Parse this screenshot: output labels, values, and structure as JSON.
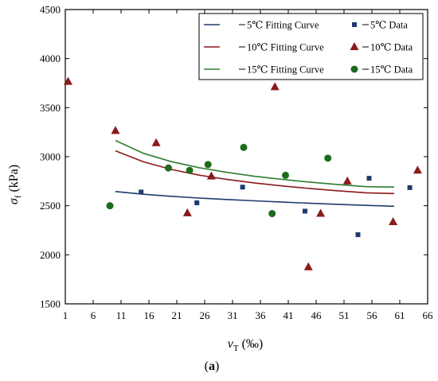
{
  "chart_data": {
    "type": "scatter",
    "xlabel": {
      "main": "v",
      "sub": "T",
      "unit": " (‰)"
    },
    "ylabel": {
      "main": "σ",
      "sub": "f",
      "unit": " (kPa)"
    },
    "caption": {
      "open": "(",
      "letter": "a",
      "close": ")"
    },
    "xlim": [
      1,
      66
    ],
    "ylim": [
      1500,
      4500
    ],
    "xticks": [
      1,
      6,
      11,
      16,
      21,
      26,
      31,
      36,
      41,
      46,
      51,
      56,
      61,
      66
    ],
    "yticks": [
      1500,
      2000,
      2500,
      3000,
      3500,
      4000,
      4500
    ],
    "grid": false,
    "legend_position": "top-right",
    "fitting_curves": [
      {
        "name": "5℃  Fitting Curve",
        "color": "#1f3a6e",
        "x": [
          10,
          15,
          20,
          25,
          30,
          35,
          40,
          45,
          50,
          55,
          60
        ],
        "y": [
          2645,
          2617,
          2596,
          2578,
          2564,
          2550,
          2537,
          2525,
          2514,
          2504,
          2495
        ]
      },
      {
        "name": "10℃  Fitting Curve",
        "color": "#8b1a1a",
        "x": [
          10,
          15,
          20,
          25,
          30,
          35,
          40,
          45,
          50,
          55,
          60
        ],
        "y": [
          3060,
          2948,
          2870,
          2812,
          2768,
          2732,
          2702,
          2675,
          2652,
          2632,
          2625
        ]
      },
      {
        "name": "15℃  Fitting Curve",
        "color": "#2e7d32",
        "x": [
          10,
          15,
          20,
          25,
          30,
          35,
          40,
          45,
          50,
          55,
          60
        ],
        "y": [
          3165,
          3035,
          2950,
          2888,
          2840,
          2800,
          2768,
          2740,
          2715,
          2694,
          2690
        ]
      }
    ],
    "data_series": [
      {
        "name": "5℃  Data",
        "marker": "square",
        "color": "#1f3a6e",
        "points": [
          [
            14.6,
            2640
          ],
          [
            24.6,
            2530
          ],
          [
            32.8,
            2690
          ],
          [
            44.0,
            2445
          ],
          [
            53.5,
            2205
          ],
          [
            55.5,
            2780
          ],
          [
            62.8,
            2685
          ]
        ]
      },
      {
        "name": "10℃  Data",
        "marker": "triangle",
        "color": "#8b1a1a",
        "points": [
          [
            1.5,
            3765
          ],
          [
            10.0,
            3265
          ],
          [
            17.3,
            3140
          ],
          [
            22.9,
            2425
          ],
          [
            27.2,
            2800
          ],
          [
            38.6,
            3710
          ],
          [
            44.6,
            1875
          ],
          [
            46.8,
            2420
          ],
          [
            51.6,
            2750
          ],
          [
            59.8,
            2335
          ],
          [
            64.2,
            2860
          ]
        ]
      },
      {
        "name": "15℃  Data",
        "marker": "circle",
        "color": "#1e6b1e",
        "points": [
          [
            9.0,
            2500
          ],
          [
            19.5,
            2885
          ],
          [
            23.3,
            2860
          ],
          [
            26.6,
            2920
          ],
          [
            33.0,
            3095
          ],
          [
            38.1,
            2420
          ],
          [
            40.5,
            2810
          ],
          [
            48.1,
            2985
          ]
        ]
      }
    ]
  }
}
